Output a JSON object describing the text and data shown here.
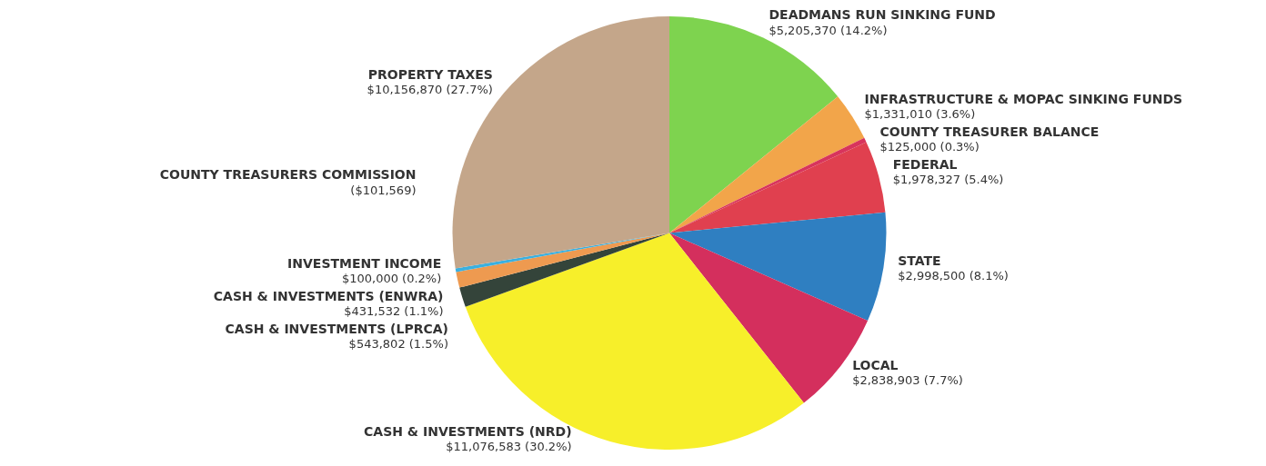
{
  "chart_data": {
    "type": "pie",
    "categories": [
      "DEADMANS RUN SINKING FUND",
      "INFRASTRUCTURE & MOPAC SINKING FUNDS",
      "COUNTY TREASURER BALANCE",
      "FEDERAL",
      "STATE",
      "LOCAL",
      "CASH & INVESTMENTS (NRD)",
      "CASH & INVESTMENTS (LPRCA)",
      "CASH & INVESTMENTS (ENWRA)",
      "INVESTMENT INCOME",
      "PROPERTY TAXES"
    ],
    "values": [
      5205370,
      1331010,
      125000,
      1978327,
      2998500,
      2838903,
      11076583,
      543802,
      431532,
      100000,
      10156870
    ],
    "value_labels": [
      "$5,205,370 (14.2%)",
      "$1,331,010 (3.6%)",
      "$125,000 (0.3%)",
      "$1,978,327 (5.4%)",
      "$2,998,500 (8.1%)",
      "$2,838,903 (7.7%)",
      "$11,076,583 (30.2%)",
      "$543,802 (1.5%)",
      "$431,532 (1.1%)",
      "$100,000 (0.2%)",
      "$10,156,870 (27.7%)"
    ],
    "colors": [
      "#7ed34f",
      "#f2a54a",
      "#d8345c",
      "#e0404f",
      "#2f7fc1",
      "#d42f5d",
      "#f7ef2a",
      "#34443a",
      "#ee9a50",
      "#3ab0e0",
      "#c4a68a"
    ],
    "annotations": [
      "COUNTY TREASURERS COMMISSION",
      "($101,569)"
    ],
    "legend": false
  }
}
